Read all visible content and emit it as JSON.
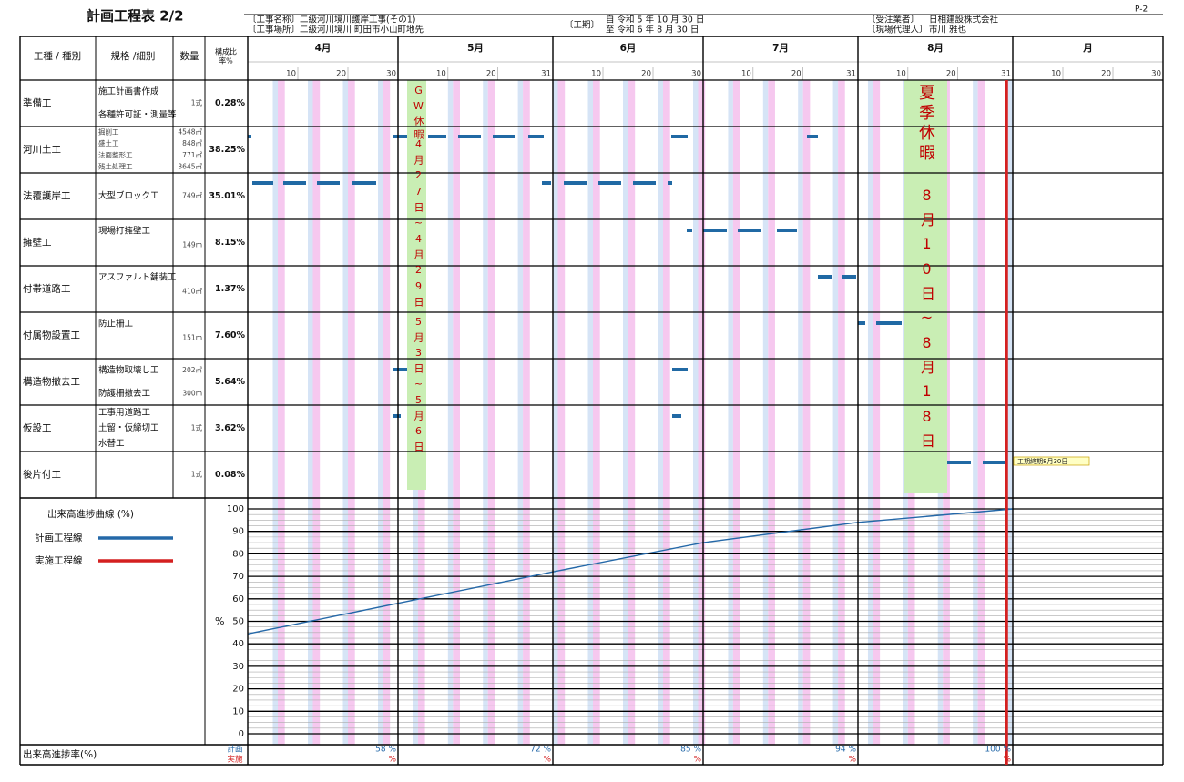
{
  "header": {
    "title": "計画工程表 2/2",
    "page": "P-2",
    "project_name": "〔工事名称〕二級河川境川護岸工事(その1)",
    "project_site": "〔工事場所〕二級河川境川 町田市小山町地先",
    "period_label": "〔工期〕",
    "period_from": "自 令和 5 年 10 月 30 日",
    "period_to": "至 令和 6 年 8 月 30 日",
    "contractor_label": "〔受注業者〕",
    "contractor": "日相建設株式会社",
    "agent_label": "〔現場代理人〕",
    "agent": "市川 雅也"
  },
  "table": {
    "columns": [
      "工種 / 種別",
      "規格 /細別",
      "数量",
      "構成比",
      "率%"
    ],
    "months": [
      {
        "name": "4月",
        "ticks": [
          10,
          20,
          30
        ]
      },
      {
        "name": "5月",
        "ticks": [
          10,
          20,
          31
        ]
      },
      {
        "name": "6月",
        "ticks": [
          10,
          20,
          30
        ]
      },
      {
        "name": "7月",
        "ticks": [
          10,
          20,
          31
        ]
      },
      {
        "name": "8月",
        "ticks": [
          10,
          20,
          31
        ]
      },
      {
        "name": "月",
        "ticks": [
          10,
          20,
          30
        ]
      }
    ],
    "rows": [
      {
        "type": "準備工",
        "specs": [
          "施工計画書作成",
          "各種許可証・測量等"
        ],
        "quantities": [
          "1式"
        ],
        "ratio": "0.28%"
      },
      {
        "type": "河川土工",
        "specs": [
          "掘削工",
          "盛土工",
          "法面整形工",
          "残土処理工"
        ],
        "quantities": [
          "4548㎥",
          "848㎥",
          "771㎡",
          "3645㎥"
        ],
        "ratio": "38.25%"
      },
      {
        "type": "法覆護岸工",
        "specs": [
          "大型ブロック工"
        ],
        "quantities": [
          "749㎡"
        ],
        "ratio": "35.01%"
      },
      {
        "type": "擁壁工",
        "specs": [
          "現場打擁壁工"
        ],
        "quantities": [
          "149m"
        ],
        "ratio": "8.15%"
      },
      {
        "type": "付帯道路工",
        "specs": [
          "アスファルト舗装工"
        ],
        "quantities": [
          "410㎡"
        ],
        "ratio": "1.37%"
      },
      {
        "type": "付属物設置工",
        "specs": [
          "防止柵工"
        ],
        "quantities": [
          "151m"
        ],
        "ratio": "7.60%"
      },
      {
        "type": "構造物撤去工",
        "specs": [
          "構造物取壊し工",
          "防護柵撤去工"
        ],
        "quantities": [
          "202㎥",
          "300m"
        ],
        "ratio": "5.64%"
      },
      {
        "type": "仮設工",
        "specs": [
          "工事用道路工",
          "土留・仮締切工",
          "水替工"
        ],
        "quantities": [
          "1式"
        ],
        "ratio": "3.62%"
      },
      {
        "type": "後片付工",
        "specs": [],
        "quantities": [
          "1式"
        ],
        "ratio": "0.08%"
      }
    ],
    "footer_label": "出来高進捗率(%)",
    "footer_rows": [
      "計画",
      "実施"
    ]
  },
  "notes": {
    "gw": [
      "GW休暇",
      "4月27日~4月29日",
      "5月3日~5月6日"
    ],
    "summer": [
      "夏季休暇",
      "8月10日~8月18日"
    ],
    "end": "工期終期8月30日"
  },
  "chart_data": {
    "type": "line",
    "title": "出来高進捗曲線 (%)",
    "ylabel": "%",
    "ylim": [
      0,
      100
    ],
    "yticks": [
      0,
      10,
      20,
      30,
      40,
      50,
      60,
      70,
      80,
      90,
      100
    ],
    "series": [
      {
        "name": "計画工程線",
        "color": "#2468a8",
        "values": [
          58,
          72,
          85,
          94,
          100
        ],
        "value_labels": [
          "58 %",
          "72 %",
          "85 %",
          "94 %",
          "100 %"
        ]
      },
      {
        "name": "実施工程線",
        "color": "#d42020",
        "values": [
          null,
          null,
          null,
          null,
          null
        ],
        "value_labels": [
          "%",
          "%",
          "%",
          "%",
          "%"
        ]
      }
    ]
  }
}
